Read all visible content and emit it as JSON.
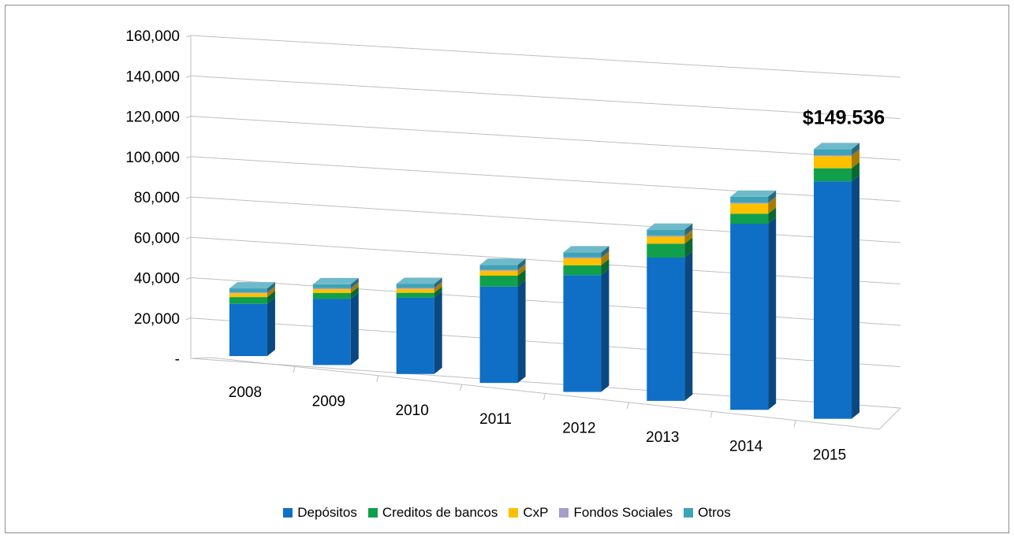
{
  "chart_data": {
    "type": "bar",
    "stacked": true,
    "three_d": true,
    "categories": [
      "2008",
      "2009",
      "2010",
      "2011",
      "2012",
      "2013",
      "2014",
      "2015"
    ],
    "series": [
      {
        "name": "Depósitos",
        "color": "#0F6FC6",
        "values": [
          27000,
          34000,
          39000,
          49000,
          59000,
          72000,
          93000,
          118000
        ]
      },
      {
        "name": "Creditos de bancos",
        "color": "#10A04C",
        "values": [
          3500,
          3000,
          2500,
          5500,
          5000,
          7000,
          5000,
          6500
        ]
      },
      {
        "name": "CxP",
        "color": "#FFC000",
        "values": [
          2000,
          2000,
          2000,
          2500,
          3500,
          3500,
          5000,
          6000
        ]
      },
      {
        "name": "Fondos Sociales",
        "color": "#A89CC8",
        "values": [
          500,
          500,
          500,
          500,
          500,
          500,
          500,
          500
        ]
      },
      {
        "name": "Otros",
        "color": "#3FA3B8",
        "values": [
          2000,
          2000,
          2000,
          2500,
          2500,
          3000,
          3000,
          3000
        ]
      }
    ],
    "yticks": [
      "-",
      "20,000",
      "40,000",
      "60,000",
      "80,000",
      "100,000",
      "120,000",
      "140,000",
      "160,000"
    ],
    "ylim": [
      0,
      160000
    ],
    "grid": true,
    "legend_position": "bottom",
    "annotation": "$149.536"
  }
}
